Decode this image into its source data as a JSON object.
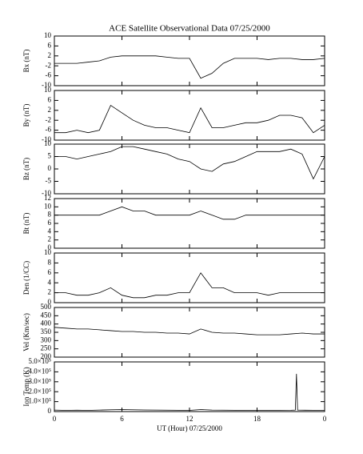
{
  "chart_data": [
    {
      "type": "line",
      "title": "ACE Satellite Observational Data   07/25/2000",
      "ylabel": "Bx (nT)",
      "color": "#000000",
      "x": [
        0,
        1,
        2,
        3,
        4,
        5,
        6,
        7,
        8,
        9,
        10,
        11,
        12,
        13,
        14,
        15,
        16,
        17,
        18,
        19,
        20,
        21,
        22,
        23,
        24
      ],
      "values": [
        -1,
        -1,
        -1,
        -0.5,
        0,
        1.5,
        2,
        2,
        2,
        2,
        1.5,
        1,
        1,
        -7,
        -5,
        -1,
        1,
        1,
        1,
        0.5,
        1,
        1,
        0.5,
        0.5,
        1
      ],
      "xlim": [
        0,
        24
      ],
      "ylim": [
        -10,
        10
      ],
      "yticks": [
        -10,
        -6,
        -2,
        2,
        6,
        10
      ]
    },
    {
      "type": "line",
      "ylabel": "By (nT)",
      "color": "#000000",
      "x": [
        0,
        1,
        2,
        3,
        4,
        5,
        6,
        7,
        8,
        9,
        10,
        11,
        12,
        13,
        14,
        15,
        16,
        17,
        18,
        19,
        20,
        21,
        22,
        23,
        24
      ],
      "values": [
        -7,
        -7,
        -6,
        -7,
        -6,
        4,
        1,
        -2,
        -4,
        -5,
        -5,
        -6,
        -7,
        3,
        -5,
        -5,
        -4,
        -3,
        -3,
        -2,
        0,
        0,
        -1,
        -7,
        -4
      ],
      "xlim": [
        0,
        24
      ],
      "ylim": [
        -10,
        10
      ],
      "yticks": [
        -10,
        -6,
        -2,
        2,
        6,
        10
      ]
    },
    {
      "type": "line",
      "ylabel": "Bz (nT)",
      "color": "#000000",
      "x": [
        0,
        1,
        2,
        3,
        4,
        5,
        6,
        7,
        8,
        9,
        10,
        11,
        12,
        13,
        14,
        15,
        16,
        17,
        18,
        19,
        20,
        21,
        22,
        23,
        24
      ],
      "values": [
        5,
        5,
        4,
        5,
        6,
        7,
        9,
        9,
        8,
        7,
        6,
        4,
        3,
        0,
        -1,
        2,
        3,
        5,
        7,
        7,
        7,
        8,
        6,
        -4,
        5
      ],
      "xlim": [
        0,
        24
      ],
      "ylim": [
        -10,
        10
      ],
      "yticks": [
        -10,
        -5,
        0,
        5,
        10
      ]
    },
    {
      "type": "line",
      "ylabel": "Bt (nT)",
      "color": "#000000",
      "x": [
        0,
        1,
        2,
        3,
        4,
        5,
        6,
        7,
        8,
        9,
        10,
        11,
        12,
        13,
        14,
        15,
        16,
        17,
        18,
        19,
        20,
        21,
        22,
        23,
        24
      ],
      "values": [
        8,
        8,
        8,
        8,
        8,
        9,
        10,
        9,
        9,
        8,
        8,
        8,
        8,
        9,
        8,
        7,
        7,
        8,
        8,
        8,
        8,
        8,
        8,
        8,
        8
      ],
      "xlim": [
        0,
        24
      ],
      "ylim": [
        0,
        12
      ],
      "yticks": [
        0,
        2,
        4,
        6,
        8,
        10,
        12
      ]
    },
    {
      "type": "line",
      "ylabel": "Den (1/CC)",
      "color": "#000000",
      "x": [
        0,
        1,
        2,
        3,
        4,
        5,
        6,
        7,
        8,
        9,
        10,
        11,
        12,
        13,
        14,
        15,
        16,
        17,
        18,
        19,
        20,
        21,
        22,
        23,
        24
      ],
      "values": [
        2,
        2,
        1.5,
        1.5,
        2,
        3,
        1.5,
        1,
        1,
        1.5,
        1.5,
        2,
        2,
        6,
        3,
        3,
        2,
        2,
        2,
        1.5,
        2,
        2,
        2,
        2,
        2
      ],
      "xlim": [
        0,
        24
      ],
      "ylim": [
        0,
        10
      ],
      "yticks": [
        0,
        2,
        4,
        6,
        8,
        10
      ]
    },
    {
      "type": "line",
      "ylabel": "Vel (Km/sec)",
      "color": "#000000",
      "x": [
        0,
        1,
        2,
        3,
        4,
        5,
        6,
        7,
        8,
        9,
        10,
        11,
        12,
        13,
        14,
        15,
        16,
        17,
        18,
        19,
        20,
        21,
        22,
        23,
        24
      ],
      "values": [
        380,
        375,
        370,
        370,
        365,
        360,
        355,
        355,
        350,
        350,
        345,
        345,
        340,
        370,
        350,
        345,
        345,
        340,
        335,
        335,
        335,
        340,
        345,
        340,
        340
      ],
      "xlim": [
        0,
        24
      ],
      "ylim": [
        200,
        500
      ],
      "yticks": [
        200,
        250,
        300,
        350,
        400,
        450,
        500
      ]
    },
    {
      "type": "line",
      "ylabel": "Ion Temp (K)",
      "xlabel": "UT (Hour)  07/25/2000",
      "color": "#000000",
      "x": [
        0,
        1,
        2,
        3,
        4,
        5,
        6,
        7,
        8,
        9,
        10,
        11,
        12,
        13,
        14,
        15,
        16,
        17,
        18,
        19,
        20,
        21,
        21.4,
        21.5,
        21.6,
        22,
        23,
        24
      ],
      "values": [
        15000,
        12000,
        14000,
        12000,
        15000,
        18000,
        20000,
        18000,
        16000,
        15000,
        14000,
        13000,
        12000,
        20000,
        15000,
        14000,
        13000,
        12000,
        12000,
        11000,
        12000,
        13000,
        15000,
        380000,
        15000,
        14000,
        13000,
        12000
      ],
      "xlim": [
        0,
        24
      ],
      "ylim": [
        0,
        500000
      ],
      "yticks": [
        0,
        {
          "value": 100000,
          "label": "1.0×10⁵"
        },
        {
          "value": 200000,
          "label": "2.0×10⁵"
        },
        {
          "value": 300000,
          "label": "3.0×10⁵"
        },
        {
          "value": 400000,
          "label": "4.0×10⁵"
        },
        {
          "value": 500000,
          "label": "5.0×10⁵"
        }
      ],
      "xticks": [
        0,
        6,
        12,
        18,
        {
          "value": 24,
          "label": "0"
        }
      ]
    }
  ]
}
